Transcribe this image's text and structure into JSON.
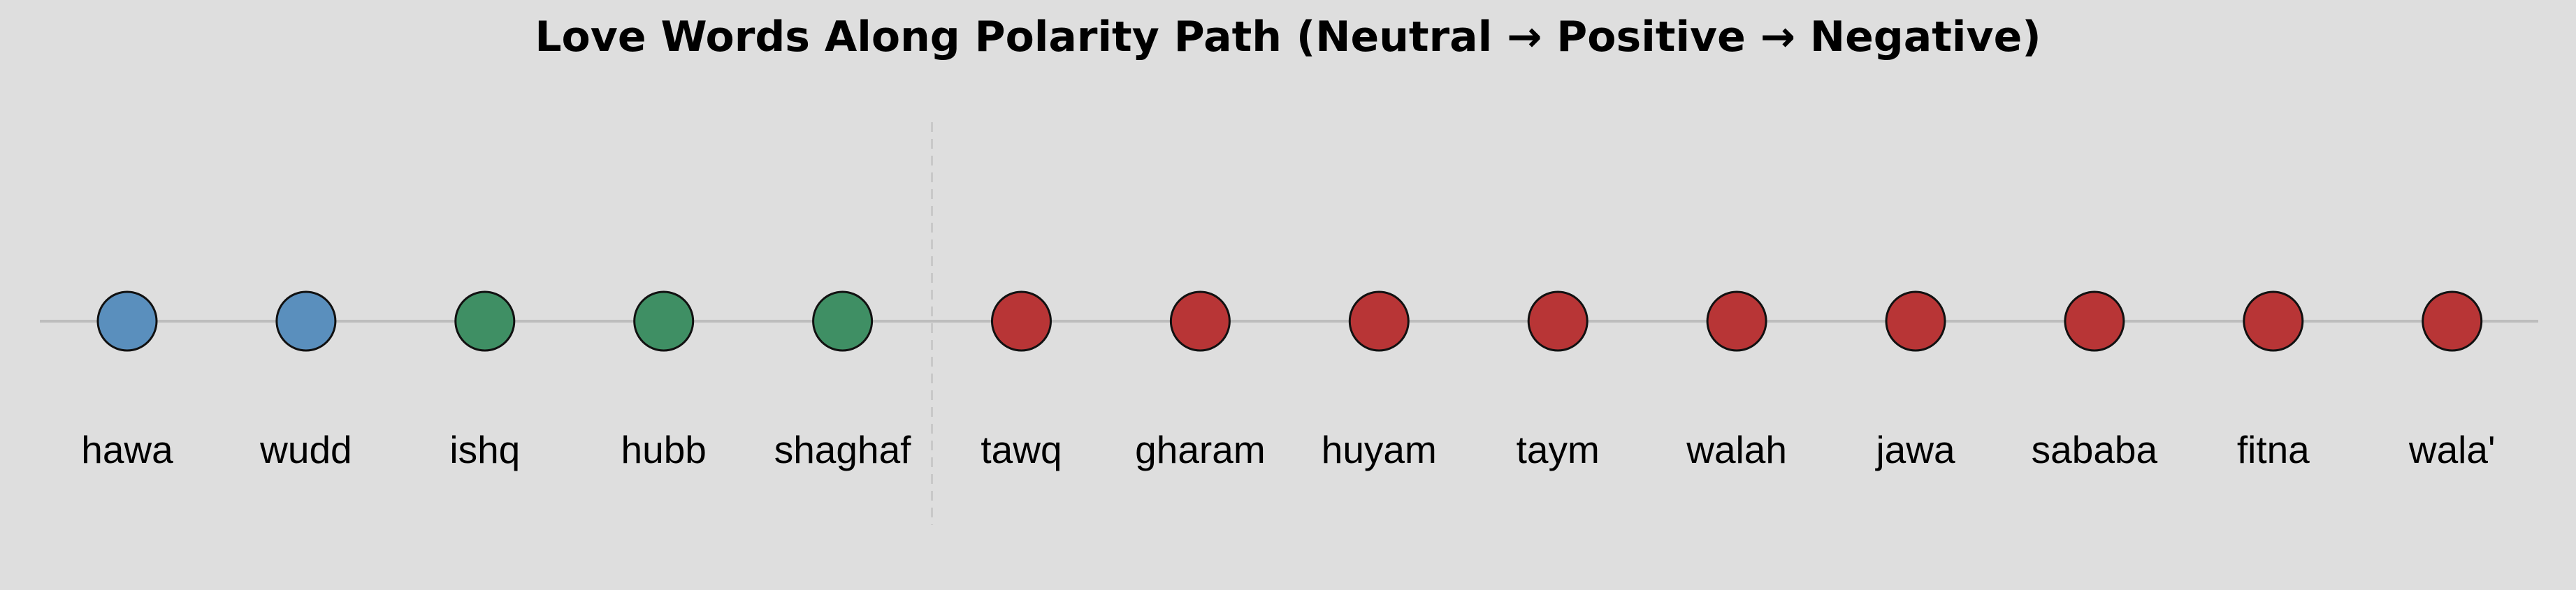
{
  "chart_data": {
    "type": "scatter",
    "title": "Love Words Along Polarity Path (Neutral → Positive → Negative)",
    "xlabel": "",
    "ylabel": "",
    "grid": false,
    "legend": "none",
    "words": [
      {
        "label": "hawa",
        "group": "neutral"
      },
      {
        "label": "wudd",
        "group": "neutral"
      },
      {
        "label": "ishq",
        "group": "positive"
      },
      {
        "label": "hubb",
        "group": "positive"
      },
      {
        "label": "shaghaf",
        "group": "positive"
      },
      {
        "label": "tawq",
        "group": "negative"
      },
      {
        "label": "gharam",
        "group": "negative"
      },
      {
        "label": "huyam",
        "group": "negative"
      },
      {
        "label": "taym",
        "group": "negative"
      },
      {
        "label": "walah",
        "group": "negative"
      },
      {
        "label": "jawa",
        "group": "negative"
      },
      {
        "label": "sababa",
        "group": "negative"
      },
      {
        "label": "fitna",
        "group": "negative"
      },
      {
        "label": "wala'",
        "group": "negative"
      }
    ],
    "divider_after_index": 4,
    "colors": {
      "neutral": "#5a8fbd",
      "positive": "#3f8f64",
      "negative": "#b83536",
      "background": "#dedede",
      "baseline": "#bdbdbd",
      "divider": "#c8c8c8",
      "marker_edge": "#111111"
    }
  }
}
